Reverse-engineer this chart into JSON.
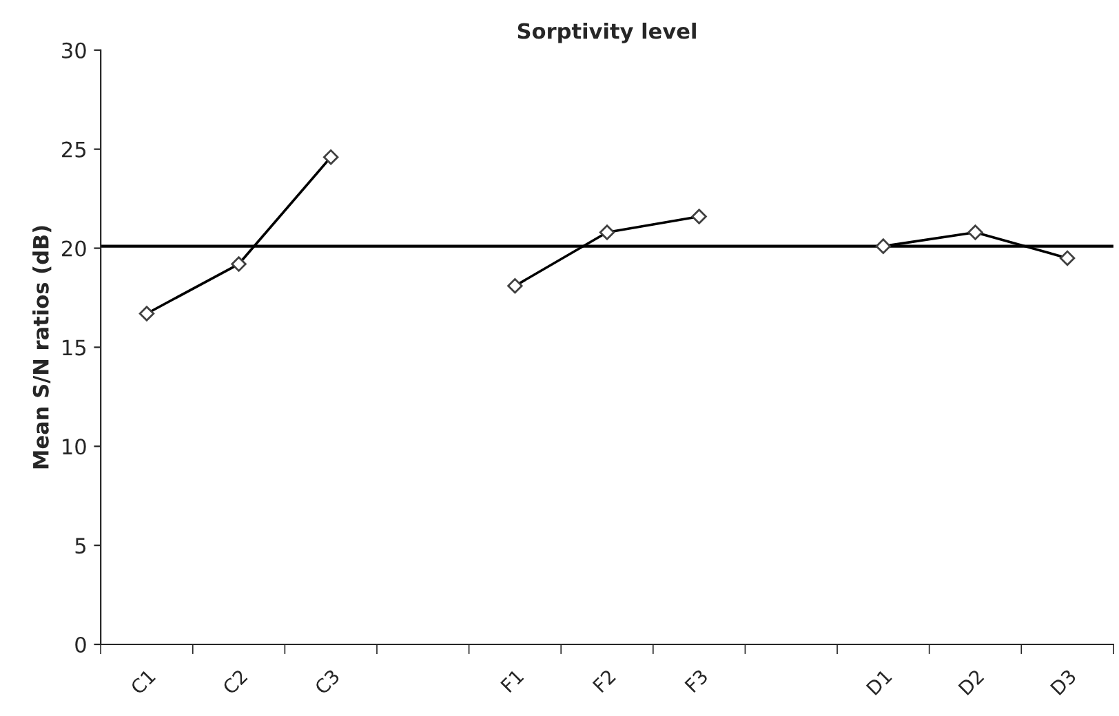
{
  "chart_data": {
    "type": "line",
    "title": "Sorptivity level",
    "ylabel": "Mean S/N ratios (dB)",
    "categories": [
      "C1",
      "C2",
      "C3",
      null,
      "F1",
      "F2",
      "F3",
      null,
      "D1",
      "D2",
      "D3"
    ],
    "series": [
      {
        "color": "#000000",
        "values": [
          16.7,
          19.2,
          24.6,
          null,
          18.1,
          20.8,
          21.6,
          null,
          20.1,
          20.8,
          19.5
        ]
      }
    ],
    "marker": "diamond",
    "line_style": "solid",
    "ylim": [
      0,
      30
    ],
    "yticks": [
      0,
      5,
      10,
      15,
      20,
      25,
      30
    ],
    "grid": false,
    "legend": false,
    "ref_lines": [
      {
        "axis": "y",
        "value": 20.1,
        "color": "#000000"
      }
    ]
  }
}
